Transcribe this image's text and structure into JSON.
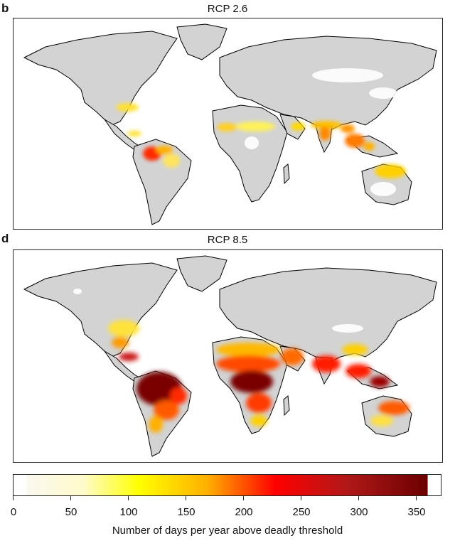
{
  "panels": [
    {
      "letter": "b",
      "title": "RCP 2.6"
    },
    {
      "letter": "d",
      "title": "RCP 8.5"
    }
  ],
  "colorbar": {
    "ticks": [
      "0",
      "50",
      "100",
      "150",
      "200",
      "250",
      "300",
      "350"
    ],
    "caption": "Number of days per year above deadly threshold",
    "colors": [
      "#fbf8ef",
      "#ffff00",
      "#ffb000",
      "#ff0000",
      "#b01818",
      "#6b0000"
    ]
  },
  "colors": {
    "land": "#d3d3d3",
    "coast": "#000000",
    "heat_low": "#fff24a",
    "heat_mid": "#ff9d00",
    "heat_high": "#ff2a00",
    "heat_max": "#7a0000"
  }
}
